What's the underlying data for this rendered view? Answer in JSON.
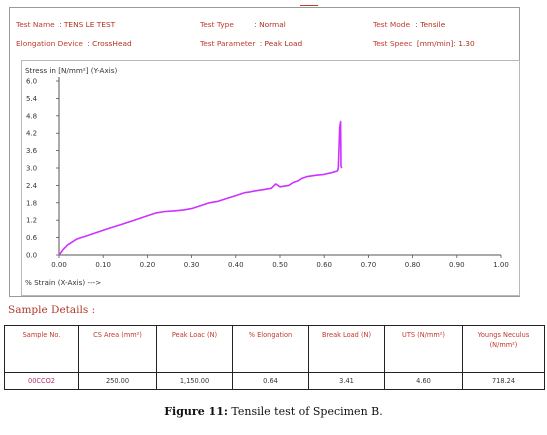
{
  "header": {
    "test_name_label": "Test Name",
    "test_name_value": ": TENS LE TEST",
    "test_type_label": "Test Type",
    "test_type_value": ": Normal",
    "test_mode_label": "Test Mode",
    "test_mode_value": ": Tensile",
    "elongation_label": "Elongation Device",
    "elongation_value": ": CrossHead",
    "test_param_label": "Test Parameter",
    "test_param_value": ": Peak Load",
    "test_speed_label": "Test Speec",
    "test_speed_value": "[mm/min]: 1.30"
  },
  "chart_data": {
    "type": "line",
    "ylabel": "Stress in [N/mm²] (Y-Axis)",
    "xlabel": "% Strain (X-Axis) --->",
    "xlim": [
      0,
      1.0
    ],
    "ylim": [
      0,
      6.0
    ],
    "x_ticks": [
      "0.00",
      "0.10",
      "0.20",
      "0.30",
      "0.40",
      "0.50",
      "0.60",
      "0.70",
      "0.80",
      "0.90",
      "1.00"
    ],
    "y_ticks": [
      "0.0",
      "0.6",
      "1.2",
      "1.8",
      "2.4",
      "3.0",
      "3.6",
      "4.2",
      "4.8",
      "5.4",
      "6.0"
    ],
    "line_color": "#cc33ff",
    "series": [
      {
        "x": [
          0.0,
          0.005,
          0.01,
          0.02,
          0.03,
          0.04,
          0.05,
          0.06,
          0.08,
          0.1,
          0.12,
          0.14,
          0.16,
          0.18,
          0.2,
          0.22,
          0.24,
          0.26,
          0.28,
          0.3,
          0.32,
          0.34,
          0.36,
          0.38,
          0.4,
          0.41,
          0.42,
          0.43,
          0.44,
          0.46,
          0.48,
          0.49,
          0.5,
          0.52,
          0.53,
          0.54,
          0.55,
          0.56,
          0.58,
          0.6,
          0.62,
          0.63,
          0.632,
          0.635,
          0.637,
          0.638,
          0.64
        ],
        "y": [
          0.0,
          0.1,
          0.2,
          0.35,
          0.45,
          0.55,
          0.6,
          0.65,
          0.75,
          0.85,
          0.95,
          1.05,
          1.15,
          1.25,
          1.35,
          1.45,
          1.5,
          1.52,
          1.55,
          1.6,
          1.7,
          1.8,
          1.85,
          1.95,
          2.05,
          2.1,
          2.15,
          2.17,
          2.2,
          2.25,
          2.3,
          2.45,
          2.35,
          2.4,
          2.5,
          2.55,
          2.65,
          2.7,
          2.75,
          2.78,
          2.85,
          2.9,
          3.0,
          4.4,
          4.6,
          3.05,
          3.0
        ]
      }
    ]
  },
  "details": {
    "title": "Sample Details :",
    "headers": [
      "Sample No.",
      "CS Area (mm²)",
      "Peak Loac (N)",
      "% Elongation",
      "Break Load (N)",
      "UTS (N/mm²)",
      "Youngs Neculus (N/mm²)"
    ],
    "row": [
      "00CCO2",
      "250.00",
      "1,150.00",
      "0.64",
      "3.41",
      "4.60",
      "718.24"
    ]
  },
  "caption": {
    "label": "Figure 11:",
    "text": " Tensile test of Specimen B."
  }
}
